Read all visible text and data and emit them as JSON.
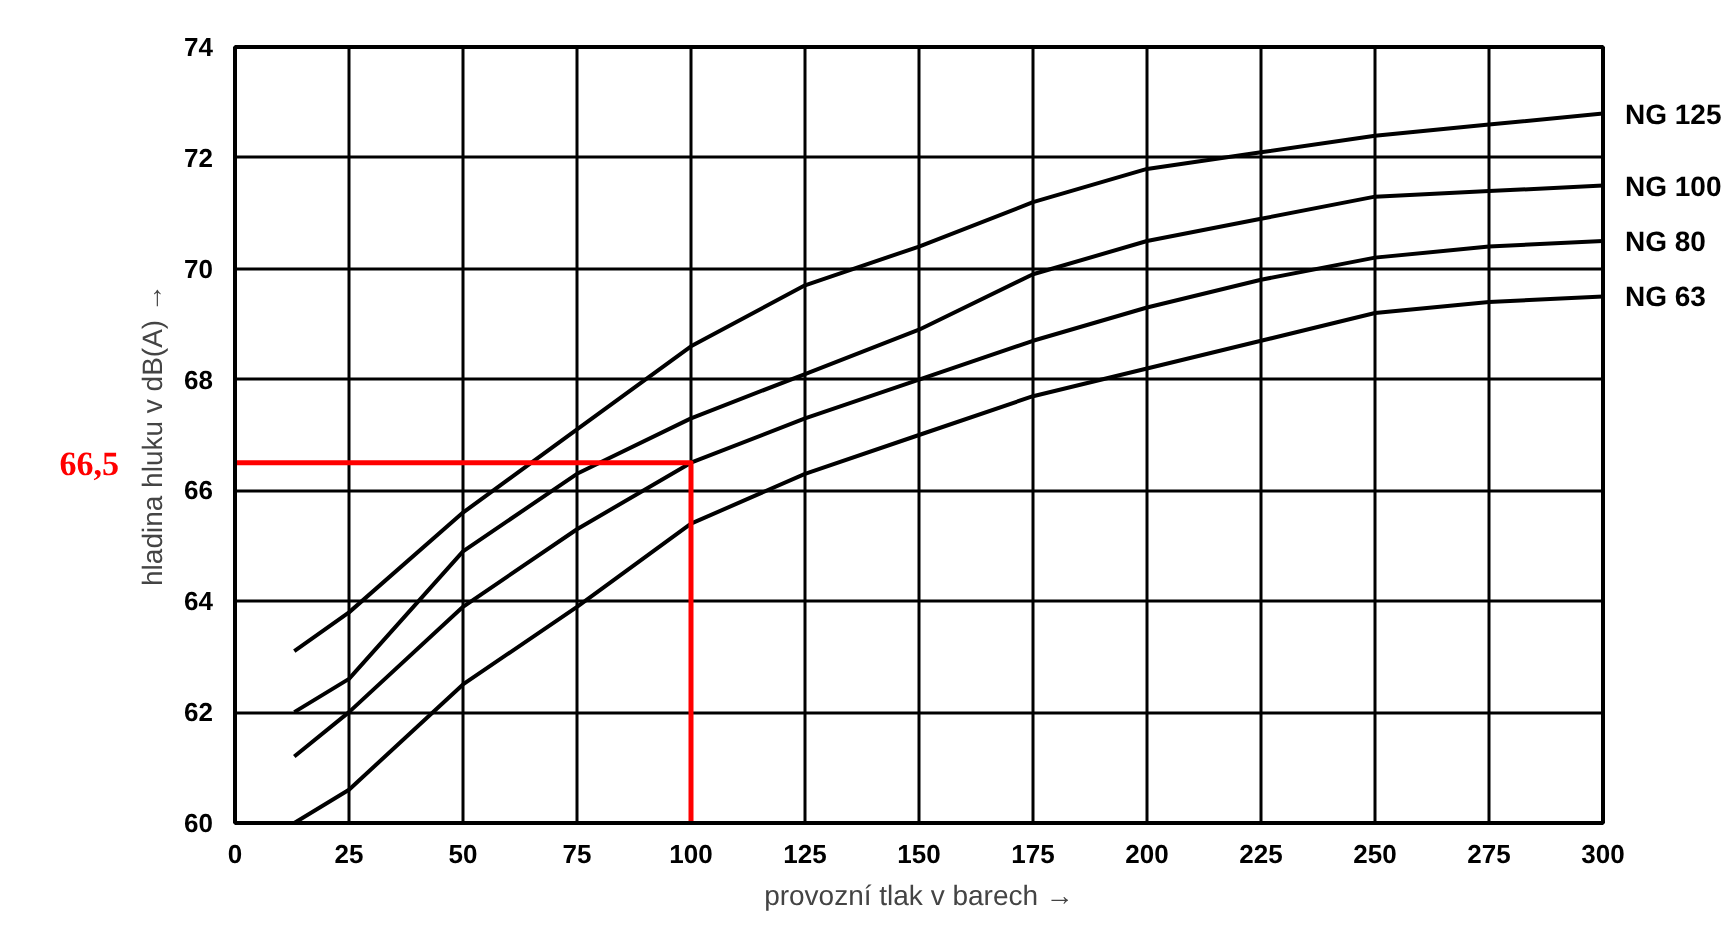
{
  "chart_data": {
    "type": "line",
    "xlabel": "provozní tlak v barech →",
    "ylabel": "hladina hluku v dB(A) →",
    "xlim": [
      0,
      300
    ],
    "xticks": [
      0,
      25,
      50,
      75,
      100,
      125,
      150,
      175,
      200,
      225,
      250,
      275,
      300
    ],
    "ylim": [
      60,
      74
    ],
    "yticks": [
      60,
      62,
      64,
      66,
      68,
      70,
      72,
      74
    ],
    "grid": true,
    "line_style": "solid",
    "marker": "none",
    "series": [
      {
        "name": "NG 125",
        "color": "#000000",
        "x": [
          13,
          25,
          50,
          75,
          100,
          125,
          150,
          175,
          200,
          225,
          250,
          275,
          300
        ],
        "values": [
          63.1,
          63.8,
          65.6,
          67.1,
          68.6,
          69.7,
          70.4,
          71.2,
          71.8,
          72.1,
          72.4,
          72.6,
          72.8
        ]
      },
      {
        "name": "NG 100",
        "color": "#000000",
        "x": [
          13,
          25,
          50,
          75,
          100,
          125,
          150,
          175,
          200,
          225,
          250,
          275,
          300
        ],
        "values": [
          62.0,
          62.6,
          64.9,
          66.3,
          67.3,
          68.1,
          68.9,
          69.9,
          70.5,
          70.9,
          71.3,
          71.4,
          71.5
        ]
      },
      {
        "name": "NG 80",
        "color": "#000000",
        "x": [
          13,
          25,
          50,
          75,
          100,
          125,
          150,
          175,
          200,
          225,
          250,
          275,
          300
        ],
        "values": [
          61.2,
          62.0,
          63.9,
          65.3,
          66.5,
          67.3,
          68.0,
          68.7,
          69.3,
          69.8,
          70.2,
          70.4,
          70.5
        ]
      },
      {
        "name": "NG 63",
        "color": "#000000",
        "x": [
          13,
          25,
          50,
          75,
          100,
          125,
          150,
          175,
          200,
          225,
          250,
          275,
          300
        ],
        "values": [
          60.0,
          60.6,
          62.5,
          63.9,
          65.4,
          66.3,
          67.0,
          67.7,
          68.2,
          68.7,
          69.2,
          69.4,
          69.5
        ]
      },
      {
        "color": "#ff0000",
        "x": [
          0,
          100,
          100
        ],
        "values": [
          66.5,
          66.5,
          60
        ]
      }
    ],
    "annotations": [
      "66,5"
    ]
  }
}
